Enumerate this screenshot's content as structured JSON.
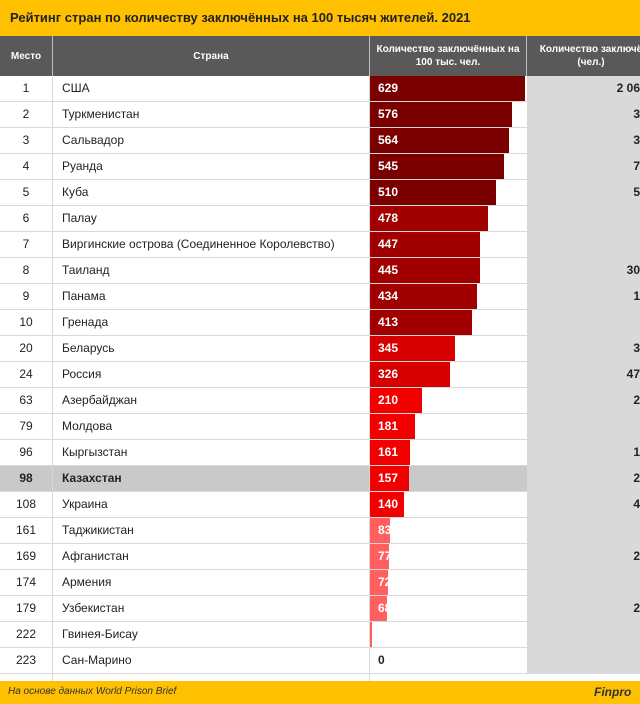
{
  "title": "Рейтинг стран по количеству заключённых на 100 тысяч жителей. 2021",
  "headers": {
    "place": "Место",
    "country": "Страна",
    "rate": "Количество заключённых на 100 тыс. чел.",
    "total": "Количество заключё (чел.)"
  },
  "footer": {
    "source": "На основе данных World Prison Brief",
    "brand": "Finpro"
  },
  "colors": {
    "accent": "#FFC000",
    "header_bg": "#595959",
    "highlight_row": "#C9C9C9"
  },
  "chart_data": {
    "type": "table",
    "title": "Рейтинг стран по количеству заключённых на 100 тысяч жителей. 2021",
    "columns": [
      "Место",
      "Страна",
      "Количество заключённых на 100 тыс. чел.",
      "Количество заключё (чел.)"
    ],
    "rows": [
      {
        "place": "1",
        "country": "США",
        "value": 629,
        "total": "2 06"
      },
      {
        "place": "2",
        "country": "Туркменистан",
        "value": 576,
        "total": "3"
      },
      {
        "place": "3",
        "country": "Сальвадор",
        "value": 564,
        "total": "3"
      },
      {
        "place": "4",
        "country": "Руанда",
        "value": 545,
        "total": "7"
      },
      {
        "place": "5",
        "country": "Куба",
        "value": 510,
        "total": "5"
      },
      {
        "place": "6",
        "country": "Палау",
        "value": 478,
        "total": ""
      },
      {
        "place": "7",
        "country": "Виргинские острова (Соединенное Королевство)",
        "value": 447,
        "total": ""
      },
      {
        "place": "8",
        "country": "Таиланд",
        "value": 445,
        "total": "30"
      },
      {
        "place": "9",
        "country": "Панама",
        "value": 434,
        "total": "1"
      },
      {
        "place": "10",
        "country": "Гренада",
        "value": 413,
        "total": ""
      },
      {
        "place": "20",
        "country": "Беларусь",
        "value": 345,
        "total": "3"
      },
      {
        "place": "24",
        "country": "Россия",
        "value": 326,
        "total": "47"
      },
      {
        "place": "63",
        "country": "Азербайджан",
        "value": 210,
        "total": "2"
      },
      {
        "place": "79",
        "country": "Молдова",
        "value": 181,
        "total": ""
      },
      {
        "place": "96",
        "country": "Кыргызстан",
        "value": 161,
        "total": "1"
      },
      {
        "place": "98",
        "country": "Казахстан",
        "value": 157,
        "total": "2",
        "highlight": true
      },
      {
        "place": "108",
        "country": "Украина",
        "value": 140,
        "total": "4"
      },
      {
        "place": "161",
        "country": "Таджикистан",
        "value": 83,
        "total": ""
      },
      {
        "place": "169",
        "country": "Афганистан",
        "value": 77,
        "total": "2"
      },
      {
        "place": "174",
        "country": "Армения",
        "value": 72,
        "total": ""
      },
      {
        "place": "179",
        "country": "Узбекистан",
        "value": 68,
        "total": "2"
      },
      {
        "place": "222",
        "country": "Гвинея-Бисау",
        "value": 10,
        "total": ""
      },
      {
        "place": "223",
        "country": "Сан-Марино",
        "value": 0,
        "total": ""
      }
    ],
    "max_value": 629
  }
}
